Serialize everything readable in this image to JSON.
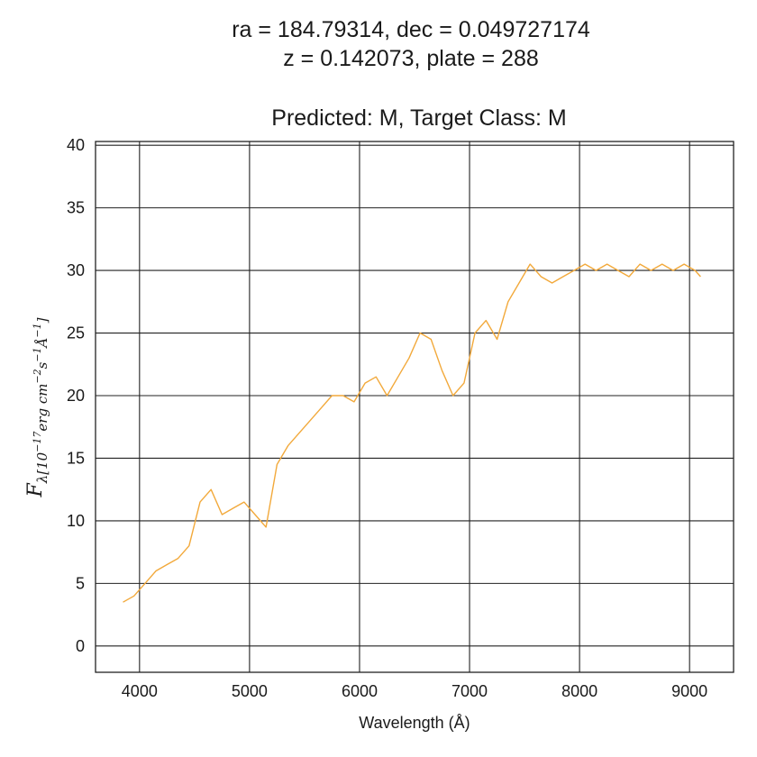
{
  "chart_data": {
    "type": "line",
    "title_lines": [
      "ra = 184.79314, dec = 0.049727174",
      "z = 0.142073, plate = 288"
    ],
    "subtitle": "Predicted: M, Target Class: M",
    "xlabel": "Wavelength (Å)",
    "ylabel": {
      "main": "F",
      "subscript": "λ[10",
      "exp1": "−17",
      "mid1": "erg cm",
      "exp2": "−2",
      "mid2": "s",
      "exp3": "−1",
      "mid3": "Å",
      "exp4": "−1",
      "end": "]"
    },
    "xlim": [
      3600,
      9400
    ],
    "ylim": [
      -2.1,
      40.3
    ],
    "xticks": [
      4000,
      5000,
      6000,
      7000,
      8000,
      9000
    ],
    "yticks": [
      0,
      5,
      10,
      15,
      20,
      25,
      30,
      35,
      40
    ],
    "grid": true,
    "series": [
      {
        "color": "#f2a93b",
        "x": [
          3850,
          3950,
          4050,
          4150,
          4250,
          4350,
          4450,
          4550,
          4650,
          4750,
          4850,
          4950,
          5050,
          5150,
          5250,
          5350,
          5450,
          5550,
          5650,
          5750,
          5850,
          5950,
          6050,
          6150,
          6250,
          6350,
          6450,
          6550,
          6650,
          6750,
          6850,
          6950,
          7050,
          7150,
          7250,
          7350,
          7450,
          7550,
          7650,
          7750,
          7850,
          7950,
          8050,
          8150,
          8250,
          8350,
          8450,
          8550,
          8650,
          8750,
          8850,
          8950,
          9050,
          9100
        ],
        "y": [
          3.5,
          4.0,
          5.0,
          6.0,
          6.5,
          7.0,
          8.0,
          11.5,
          12.5,
          10.5,
          11.0,
          11.5,
          10.5,
          9.5,
          14.5,
          16.0,
          17.0,
          18.0,
          19.0,
          20.0,
          20.0,
          19.5,
          21.0,
          21.5,
          20.0,
          21.5,
          23.0,
          25.0,
          24.5,
          22.0,
          20.0,
          21.0,
          25.0,
          26.0,
          24.5,
          27.5,
          29.0,
          30.5,
          29.5,
          29.0,
          29.5,
          30.0,
          30.5,
          30.0,
          30.5,
          30.0,
          29.5,
          30.5,
          30.0,
          30.5,
          30.0,
          30.5,
          30.0,
          29.5
        ]
      }
    ]
  }
}
